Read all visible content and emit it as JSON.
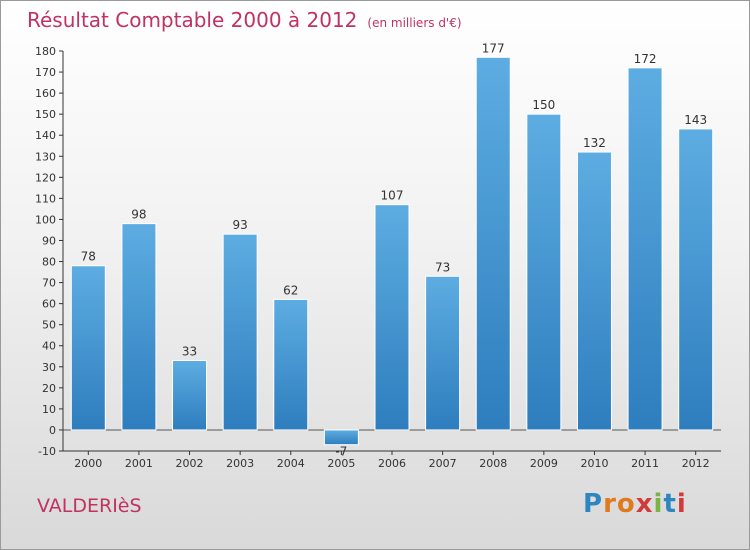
{
  "header": {
    "title": "Résultat Comptable 2000 à 2012",
    "subtitle": "(en milliers d'€)"
  },
  "footer": {
    "commune": "VALDERIèS",
    "logo_text": "Proxiti",
    "logo_colors": [
      "#2e86c1",
      "#e07a1f",
      "#e07a1f",
      "#d23a3a",
      "#7cb342",
      "#2e86c1",
      "#d23a3a"
    ]
  },
  "colors": {
    "title": "#c0325f",
    "bar_top": "#5dade2",
    "bar_bottom": "#2e7dbe",
    "axis": "#333333"
  },
  "chart_data": {
    "type": "bar",
    "categories": [
      "2000",
      "2001",
      "2002",
      "2003",
      "2004",
      "2005",
      "2006",
      "2007",
      "2008",
      "2009",
      "2010",
      "2011",
      "2012"
    ],
    "values": [
      78,
      98,
      33,
      93,
      62,
      -7,
      107,
      73,
      177,
      150,
      132,
      172,
      143
    ],
    "ylim": [
      -10,
      180
    ],
    "yticks": [
      -10,
      0,
      10,
      20,
      30,
      40,
      50,
      60,
      70,
      80,
      90,
      100,
      110,
      120,
      130,
      140,
      150,
      160,
      170,
      180
    ],
    "grid": false,
    "legend": "none"
  }
}
